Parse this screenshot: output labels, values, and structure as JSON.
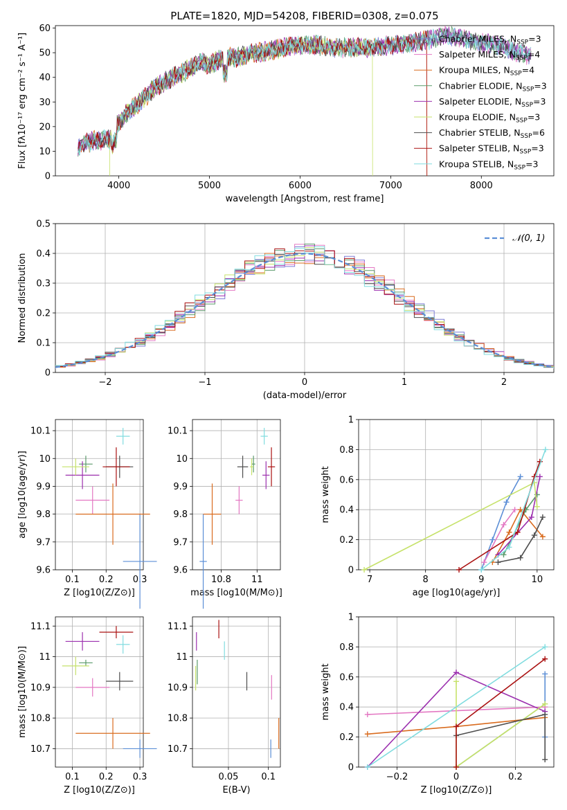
{
  "figure_title": "PLATE=1820, MJD=54208, FIBERID=0308, z=0.075",
  "colors": {
    "Chabrier MILES": "#7b7bd6",
    "Salpeter MILES": "#e377c2",
    "Kroupa MILES": "#d96b1e",
    "Chabrier ELODIE": "#5a9a6a",
    "Salpeter ELODIE": "#9b2fae",
    "Kroupa ELODIE": "#c6e26a",
    "Chabrier STELIB": "#4d4d4d",
    "Salpeter STELIB": "#aa1111",
    "Kroupa STELIB": "#80dcdf",
    "marker_blue": "#5b8ed6",
    "normal_curve": "#5b8ed6",
    "grid": "#b0b0b0"
  },
  "chart_data": [
    {
      "id": "spectrum",
      "type": "line",
      "title": "PLATE=1820, MJD=54208, FIBERID=0308, z=0.075",
      "xlabel": "wavelength [Angstrom, rest frame]",
      "ylabel": "Flux [f",
      "ylabel_full": "Flux [fλ10⁻¹⁷ erg cm⁻² s⁻¹ A⁻¹]",
      "xlim": [
        3300,
        8800
      ],
      "ylim": [
        0,
        61
      ],
      "xticks": [
        4000,
        5000,
        6000,
        7000,
        8000
      ],
      "yticks": [
        0,
        10,
        20,
        30,
        40,
        50,
        60
      ],
      "grid": false,
      "legend_position": "top-right",
      "continuum_points": [
        [
          3550,
          12
        ],
        [
          3700,
          14
        ],
        [
          3900,
          15
        ],
        [
          4000,
          22
        ],
        [
          4100,
          26
        ],
        [
          4200,
          29
        ],
        [
          4300,
          32
        ],
        [
          4400,
          36
        ],
        [
          4500,
          38
        ],
        [
          4600,
          40
        ],
        [
          4700,
          42
        ],
        [
          4800,
          44
        ],
        [
          4900,
          46
        ],
        [
          5000,
          45
        ],
        [
          5100,
          47
        ],
        [
          5200,
          48
        ],
        [
          5300,
          48
        ],
        [
          5500,
          50
        ],
        [
          5700,
          51
        ],
        [
          5900,
          53
        ],
        [
          6000,
          53
        ],
        [
          6200,
          53
        ],
        [
          6400,
          52
        ],
        [
          6600,
          52
        ],
        [
          6800,
          52
        ],
        [
          7000,
          53
        ],
        [
          7200,
          54
        ],
        [
          7400,
          55
        ],
        [
          7600,
          57
        ],
        [
          7800,
          56
        ],
        [
          8000,
          54
        ],
        [
          8200,
          53
        ],
        [
          8400,
          50
        ],
        [
          8550,
          49
        ]
      ],
      "series": [
        {
          "name": "Chabrier MILES",
          "nssp": "3",
          "range": [
            3550,
            8550
          ]
        },
        {
          "name": "Salpeter MILES",
          "nssp": "4",
          "range": [
            3550,
            8550
          ]
        },
        {
          "name": "Kroupa MILES",
          "nssp": "4",
          "range": [
            3550,
            7400
          ]
        },
        {
          "name": "Chabrier ELODIE",
          "nssp": "3",
          "range": [
            3550,
            8550
          ]
        },
        {
          "name": "Salpeter ELODIE",
          "nssp": "3",
          "range": [
            3550,
            8550
          ]
        },
        {
          "name": "Kroupa ELODIE",
          "nssp": "3",
          "range": [
            3900,
            6800
          ]
        },
        {
          "name": "Chabrier STELIB",
          "nssp": "6",
          "range": [
            3550,
            8550
          ]
        },
        {
          "name": "Salpeter STELIB",
          "nssp": "3",
          "range": [
            3550,
            7400
          ]
        },
        {
          "name": "Kroupa STELIB",
          "nssp": "3",
          "range": [
            3550,
            8550
          ]
        }
      ]
    },
    {
      "id": "residual-hist",
      "type": "area",
      "xlabel": "(data-model)/error",
      "ylabel": "Normed distribution",
      "xlim": [
        -2.5,
        2.5
      ],
      "ylim": [
        0,
        0.5
      ],
      "xticks": [
        -2,
        -1,
        0,
        1,
        2
      ],
      "yticks": [
        0.0,
        0.1,
        0.2,
        0.3,
        0.4,
        0.5
      ],
      "grid": true,
      "legend_position": "top-right",
      "legend_entries": [
        "N(0,1)"
      ],
      "bin_width": 0.1
    },
    {
      "id": "age-vs-Z",
      "type": "scatter",
      "xlabel": "Z [log10(Z/Z⊙)]",
      "ylabel": "age  [log10(age/yr)]",
      "xlim": [
        0.05,
        0.31
      ],
      "ylim": [
        9.6,
        10.14
      ],
      "xticks": [
        0.1,
        0.2,
        0.3
      ],
      "yticks": [
        9.6,
        9.7,
        9.8,
        9.9,
        10.0,
        10.1
      ],
      "grid": true,
      "points": [
        {
          "color": "marker_blue",
          "x": 0.3,
          "y": 9.63,
          "xerr": 0.05,
          "yerr": 0.17
        },
        {
          "color": "Salpeter MILES",
          "x": 0.16,
          "y": 9.85,
          "xerr": 0.05,
          "yerr": 0.05
        },
        {
          "color": "Kroupa MILES",
          "x": 0.22,
          "y": 9.8,
          "xerr": 0.11,
          "yerr": 0.11
        },
        {
          "color": "Chabrier ELODIE",
          "x": 0.14,
          "y": 9.98,
          "xerr": 0.02,
          "yerr": 0.03
        },
        {
          "color": "Salpeter ELODIE",
          "x": 0.13,
          "y": 9.94,
          "xerr": 0.05,
          "yerr": 0.05
        },
        {
          "color": "Kroupa ELODIE",
          "x": 0.11,
          "y": 9.97,
          "xerr": 0.04,
          "yerr": 0.03
        },
        {
          "color": "Chabrier STELIB",
          "x": 0.24,
          "y": 9.97,
          "xerr": 0.04,
          "yerr": 0.04
        },
        {
          "color": "Salpeter STELIB",
          "x": 0.23,
          "y": 9.97,
          "xerr": 0.04,
          "yerr": 0.07
        },
        {
          "color": "Kroupa STELIB",
          "x": 0.25,
          "y": 10.08,
          "xerr": 0.02,
          "yerr": 0.03
        }
      ]
    },
    {
      "id": "age-vs-mass",
      "type": "scatter",
      "xlabel": "mass [log10(M/M⊙)]",
      "ylabel": "",
      "xlim": [
        10.64,
        11.13
      ],
      "ylim": [
        9.6,
        10.14
      ],
      "xticks": [
        10.8,
        11.0
      ],
      "yticks": [
        9.6,
        9.7,
        9.8,
        9.9,
        10.0,
        10.1
      ],
      "grid": true,
      "points": [
        {
          "color": "marker_blue",
          "x": 10.7,
          "y": 9.63,
          "xerr": 0.02,
          "yerr": 0.17
        },
        {
          "color": "Salpeter MILES",
          "x": 10.9,
          "y": 9.85,
          "xerr": 0.02,
          "yerr": 0.05
        },
        {
          "color": "Kroupa MILES",
          "x": 10.75,
          "y": 9.8,
          "xerr": 0.05,
          "yerr": 0.11
        },
        {
          "color": "Chabrier ELODIE",
          "x": 10.98,
          "y": 9.98,
          "xerr": 0.01,
          "yerr": 0.03
        },
        {
          "color": "Salpeter ELODIE",
          "x": 11.05,
          "y": 9.94,
          "xerr": 0.02,
          "yerr": 0.05
        },
        {
          "color": "Kroupa ELODIE",
          "x": 10.97,
          "y": 9.97,
          "xerr": 0.01,
          "yerr": 0.03
        },
        {
          "color": "Chabrier STELIB",
          "x": 10.92,
          "y": 9.97,
          "xerr": 0.03,
          "yerr": 0.04
        },
        {
          "color": "Salpeter STELIB",
          "x": 11.08,
          "y": 9.97,
          "xerr": 0.02,
          "yerr": 0.07
        },
        {
          "color": "Kroupa STELIB",
          "x": 11.04,
          "y": 10.08,
          "xerr": 0.02,
          "yerr": 0.03
        }
      ]
    },
    {
      "id": "weight-vs-age",
      "type": "line",
      "xlabel": "age  [log10(age/yr)]",
      "ylabel": "mass weight",
      "xlim": [
        6.8,
        10.3
      ],
      "ylim": [
        0,
        1.0
      ],
      "xticks": [
        7,
        8,
        9,
        10
      ],
      "yticks": [
        0.0,
        0.2,
        0.4,
        0.6,
        0.8,
        1.0
      ],
      "grid": true,
      "series": [
        {
          "color": "marker_blue",
          "points": [
            [
              9.0,
              0.0
            ],
            [
              9.2,
              0.2
            ],
            [
              9.45,
              0.45
            ],
            [
              9.7,
              0.62
            ]
          ]
        },
        {
          "color": "Salpeter MILES",
          "points": [
            [
              9.05,
              0.05
            ],
            [
              9.4,
              0.3
            ],
            [
              9.6,
              0.4
            ]
          ]
        },
        {
          "color": "Kroupa MILES",
          "points": [
            [
              9.2,
              0.05
            ],
            [
              9.5,
              0.25
            ],
            [
              9.7,
              0.4
            ],
            [
              10.1,
              0.22
            ]
          ]
        },
        {
          "color": "Chabrier ELODIE",
          "points": [
            [
              9.4,
              0.1
            ],
            [
              9.8,
              0.4
            ],
            [
              10.0,
              0.5
            ]
          ]
        },
        {
          "color": "Salpeter ELODIE",
          "points": [
            [
              9.3,
              0.1
            ],
            [
              9.9,
              0.35
            ],
            [
              10.05,
              0.62
            ]
          ]
        },
        {
          "color": "Kroupa ELODIE",
          "points": [
            [
              6.9,
              0.0
            ],
            [
              9.95,
              0.58
            ],
            [
              10.0,
              0.42
            ]
          ]
        },
        {
          "color": "Chabrier STELIB",
          "points": [
            [
              9.3,
              0.05
            ],
            [
              9.7,
              0.08
            ],
            [
              9.95,
              0.23
            ],
            [
              10.1,
              0.35
            ]
          ]
        },
        {
          "color": "Salpeter STELIB",
          "points": [
            [
              8.6,
              0.0
            ],
            [
              9.65,
              0.25
            ],
            [
              9.95,
              0.62
            ],
            [
              10.05,
              0.72
            ]
          ]
        },
        {
          "color": "Kroupa STELIB",
          "points": [
            [
              9.0,
              0.0
            ],
            [
              9.5,
              0.15
            ],
            [
              10.15,
              0.8
            ]
          ]
        }
      ]
    },
    {
      "id": "mass-vs-Z",
      "type": "scatter",
      "xlabel": "Z [log10(Z/Z⊙)]",
      "ylabel": "mass [log10(M/M⊙)]",
      "xlim": [
        0.05,
        0.31
      ],
      "ylim": [
        10.64,
        11.13
      ],
      "xticks": [
        0.1,
        0.2,
        0.3
      ],
      "yticks": [
        10.7,
        10.8,
        10.9,
        11.0,
        11.1
      ],
      "grid": true,
      "points": [
        {
          "color": "marker_blue",
          "x": 0.3,
          "y": 10.7,
          "xerr": 0.05,
          "yerr": 0.03
        },
        {
          "color": "Salpeter MILES",
          "x": 0.16,
          "y": 10.9,
          "xerr": 0.05,
          "yerr": 0.03
        },
        {
          "color": "Kroupa MILES",
          "x": 0.22,
          "y": 10.75,
          "xerr": 0.11,
          "yerr": 0.05
        },
        {
          "color": "Chabrier ELODIE",
          "x": 0.14,
          "y": 10.98,
          "xerr": 0.02,
          "yerr": 0.01
        },
        {
          "color": "Salpeter ELODIE",
          "x": 0.13,
          "y": 11.05,
          "xerr": 0.05,
          "yerr": 0.03
        },
        {
          "color": "Kroupa ELODIE",
          "x": 0.11,
          "y": 10.97,
          "xerr": 0.04,
          "yerr": 0.03
        },
        {
          "color": "Chabrier STELIB",
          "x": 0.24,
          "y": 10.92,
          "xerr": 0.04,
          "yerr": 0.03
        },
        {
          "color": "Salpeter STELIB",
          "x": 0.23,
          "y": 11.08,
          "xerr": 0.05,
          "yerr": 0.02
        },
        {
          "color": "Kroupa STELIB",
          "x": 0.25,
          "y": 11.04,
          "xerr": 0.02,
          "yerr": 0.03
        }
      ]
    },
    {
      "id": "mass-vs-ebv",
      "type": "scatter",
      "xlabel": "E(B-V)",
      "ylabel": "",
      "xlim": [
        0.005,
        0.115
      ],
      "ylim": [
        10.64,
        11.13
      ],
      "xticks": [
        0.05,
        0.1
      ],
      "yticks": [
        10.7,
        10.8,
        10.9,
        11.0,
        11.1
      ],
      "grid": true,
      "points": [
        {
          "color": "marker_blue",
          "x": 0.103,
          "y": 10.7,
          "xerr": 0.0,
          "yerr": 0.03
        },
        {
          "color": "Salpeter MILES",
          "x": 0.104,
          "y": 10.9,
          "xerr": 0.0,
          "yerr": 0.04
        },
        {
          "color": "Kroupa MILES",
          "x": 0.113,
          "y": 10.75,
          "xerr": 0.0,
          "yerr": 0.05
        },
        {
          "color": "Chabrier ELODIE",
          "x": 0.011,
          "y": 10.95,
          "xerr": 0.0,
          "yerr": 0.04
        },
        {
          "color": "Salpeter ELODIE",
          "x": 0.01,
          "y": 11.05,
          "xerr": 0.0,
          "yerr": 0.03
        },
        {
          "color": "Kroupa ELODIE",
          "x": 0.009,
          "y": 10.93,
          "xerr": 0.0,
          "yerr": 0.04
        },
        {
          "color": "Chabrier STELIB",
          "x": 0.073,
          "y": 10.92,
          "xerr": 0.0,
          "yerr": 0.03
        },
        {
          "color": "Salpeter STELIB",
          "x": 0.038,
          "y": 11.09,
          "xerr": 0.0,
          "yerr": 0.03
        },
        {
          "color": "Kroupa STELIB",
          "x": 0.045,
          "y": 11.02,
          "xerr": 0.0,
          "yerr": 0.03
        }
      ]
    },
    {
      "id": "weight-vs-Z",
      "type": "line",
      "xlabel": "Z [log10(Z/Z⊙)]",
      "ylabel": "mass weight",
      "xlim": [
        -0.33,
        0.33
      ],
      "ylim": [
        0,
        1.0
      ],
      "xticks": [
        -0.2,
        0.0,
        0.2
      ],
      "yticks": [
        0.0,
        0.2,
        0.4,
        0.6,
        0.8,
        1.0
      ],
      "grid": true,
      "series": [
        {
          "color": "marker_blue",
          "points": [
            [
              0.3,
              0.62
            ],
            [
              0.3,
              0.2
            ]
          ]
        },
        {
          "color": "Salpeter MILES",
          "points": [
            [
              -0.3,
              0.35
            ],
            [
              0.3,
              0.4
            ]
          ]
        },
        {
          "color": "Kroupa MILES",
          "points": [
            [
              -0.3,
              0.22
            ],
            [
              0.0,
              0.27
            ],
            [
              0.3,
              0.33
            ]
          ]
        },
        {
          "color": "Chabrier ELODIE",
          "points": [
            [
              0.0,
              0.0
            ],
            [
              0.3,
              0.42
            ]
          ]
        },
        {
          "color": "Salpeter ELODIE",
          "points": [
            [
              -0.3,
              0.0
            ],
            [
              0.0,
              0.63
            ],
            [
              0.3,
              0.37
            ]
          ]
        },
        {
          "color": "Kroupa ELODIE",
          "points": [
            [
              0.0,
              0.57
            ],
            [
              0.0,
              0.0
            ],
            [
              0.3,
              0.42
            ]
          ]
        },
        {
          "color": "Chabrier STELIB",
          "points": [
            [
              0.0,
              0.21
            ],
            [
              0.3,
              0.35
            ],
            [
              0.3,
              0.05
            ]
          ]
        },
        {
          "color": "Salpeter STELIB",
          "points": [
            [
              0.0,
              0.0
            ],
            [
              0.0,
              0.27
            ],
            [
              0.3,
              0.72
            ]
          ]
        },
        {
          "color": "Kroupa STELIB",
          "points": [
            [
              -0.3,
              0.0
            ],
            [
              0.3,
              0.8
            ]
          ]
        }
      ]
    }
  ]
}
